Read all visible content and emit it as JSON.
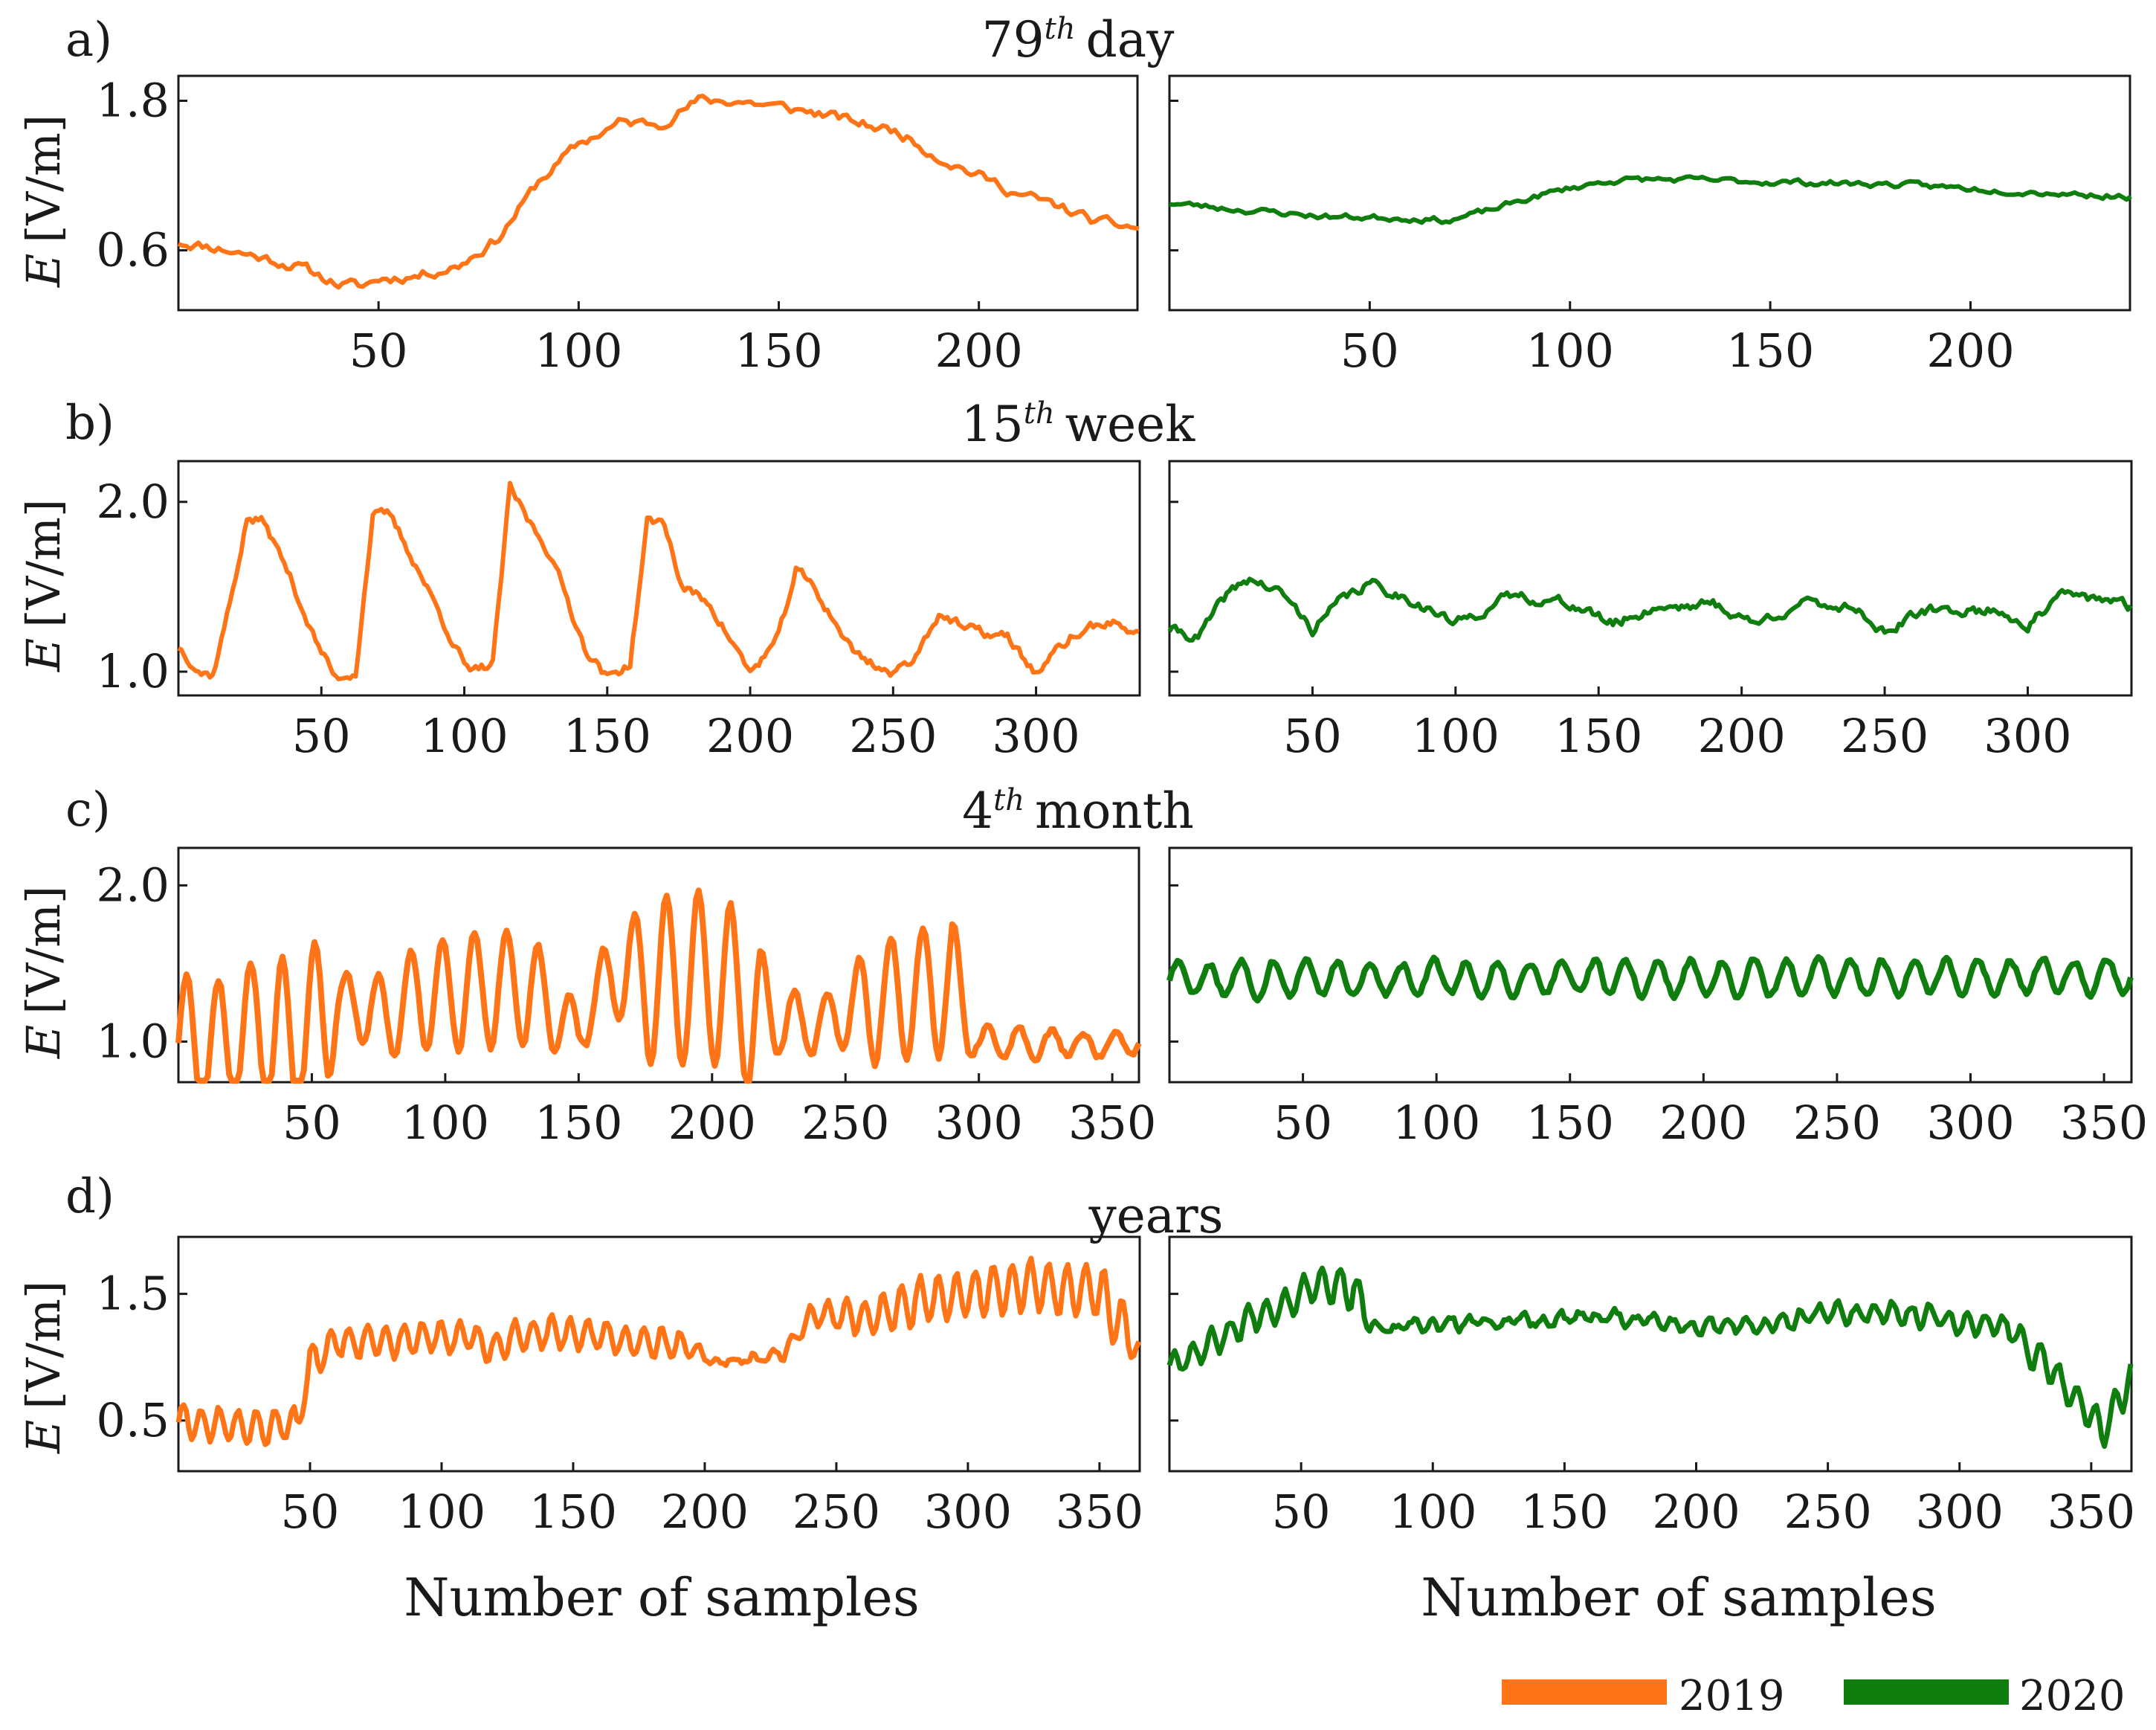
{
  "chart_data": [
    {
      "panel": "a)",
      "title_prefix": "79",
      "title_sup": "th",
      "title_suffix": "day",
      "type": "line",
      "ylabel_italic": "E",
      "ylabel_rest": "[V/m]",
      "yticks": [
        0.6,
        1.8
      ],
      "ytick_labels": [
        "0.6",
        "1.8"
      ],
      "ylim": [
        0.12,
        2.0
      ],
      "xticks": [
        50,
        100,
        150,
        200
      ],
      "xlim": [
        0,
        240
      ],
      "left": {
        "name": "2019",
        "n": 240,
        "knots": [
          [
            0,
            0.67
          ],
          [
            10,
            0.62
          ],
          [
            20,
            0.55
          ],
          [
            30,
            0.47
          ],
          [
            40,
            0.33
          ],
          [
            46,
            0.31
          ],
          [
            50,
            0.37
          ],
          [
            60,
            0.4
          ],
          [
            70,
            0.48
          ],
          [
            80,
            0.7
          ],
          [
            90,
            1.15
          ],
          [
            100,
            1.45
          ],
          [
            110,
            1.62
          ],
          [
            120,
            1.62
          ],
          [
            130,
            1.8
          ],
          [
            140,
            1.8
          ],
          [
            150,
            1.75
          ],
          [
            160,
            1.7
          ],
          [
            170,
            1.62
          ],
          [
            180,
            1.55
          ],
          [
            190,
            1.35
          ],
          [
            200,
            1.2
          ],
          [
            210,
            1.05
          ],
          [
            220,
            0.95
          ],
          [
            230,
            0.82
          ],
          [
            240,
            0.78
          ]
        ],
        "noise": 0.035,
        "seed": 11
      },
      "right": {
        "name": "2020",
        "n": 240,
        "knots": [
          [
            0,
            0.98
          ],
          [
            20,
            0.92
          ],
          [
            40,
            0.87
          ],
          [
            60,
            0.86
          ],
          [
            70,
            0.84
          ],
          [
            80,
            0.92
          ],
          [
            90,
            1.02
          ],
          [
            100,
            1.1
          ],
          [
            110,
            1.16
          ],
          [
            120,
            1.17
          ],
          [
            150,
            1.15
          ],
          [
            180,
            1.13
          ],
          [
            210,
            1.08
          ],
          [
            240,
            1.03
          ]
        ],
        "noise": 0.02,
        "seed": 23
      }
    },
    {
      "panel": "b)",
      "title_prefix": "15",
      "title_sup": "th",
      "title_suffix": "week",
      "type": "line",
      "ylabel_italic": "E",
      "ylabel_rest": "[V/m]",
      "yticks": [
        1.0,
        2.0
      ],
      "ytick_labels": [
        "1.0",
        "2.0"
      ],
      "ylim": [
        0.86,
        2.24
      ],
      "xticks": [
        50,
        100,
        150,
        200,
        250,
        300
      ],
      "xlim": [
        0,
        336
      ],
      "left": {
        "name": "2019",
        "n": 336,
        "knots": [
          [
            0,
            1.15
          ],
          [
            8,
            1.0
          ],
          [
            12,
            0.98
          ],
          [
            18,
            1.4
          ],
          [
            24,
            1.9
          ],
          [
            30,
            1.88
          ],
          [
            38,
            1.6
          ],
          [
            48,
            1.18
          ],
          [
            55,
            0.96
          ],
          [
            62,
            1.0
          ],
          [
            68,
            1.92
          ],
          [
            74,
            1.92
          ],
          [
            84,
            1.6
          ],
          [
            94,
            1.25
          ],
          [
            102,
            0.98
          ],
          [
            110,
            1.05
          ],
          [
            116,
            2.08
          ],
          [
            122,
            1.9
          ],
          [
            130,
            1.7
          ],
          [
            142,
            1.15
          ],
          [
            150,
            0.96
          ],
          [
            158,
            1.05
          ],
          [
            164,
            1.88
          ],
          [
            170,
            1.88
          ],
          [
            176,
            1.5
          ],
          [
            186,
            1.4
          ],
          [
            200,
            0.99
          ],
          [
            210,
            1.2
          ],
          [
            216,
            1.6
          ],
          [
            222,
            1.5
          ],
          [
            236,
            1.12
          ],
          [
            250,
            0.98
          ],
          [
            258,
            1.1
          ],
          [
            266,
            1.35
          ],
          [
            275,
            1.25
          ],
          [
            290,
            1.2
          ],
          [
            300,
            0.99
          ],
          [
            312,
            1.2
          ],
          [
            325,
            1.3
          ],
          [
            336,
            1.22
          ]
        ],
        "noise": 0.025,
        "seed": 37
      },
      "right": {
        "name": "2020",
        "n": 336,
        "knots": [
          [
            0,
            1.25
          ],
          [
            10,
            1.2
          ],
          [
            20,
            1.45
          ],
          [
            28,
            1.55
          ],
          [
            40,
            1.45
          ],
          [
            50,
            1.25
          ],
          [
            60,
            1.42
          ],
          [
            70,
            1.52
          ],
          [
            85,
            1.42
          ],
          [
            100,
            1.28
          ],
          [
            120,
            1.45
          ],
          [
            140,
            1.4
          ],
          [
            155,
            1.28
          ],
          [
            170,
            1.38
          ],
          [
            190,
            1.4
          ],
          [
            205,
            1.28
          ],
          [
            220,
            1.4
          ],
          [
            240,
            1.38
          ],
          [
            250,
            1.23
          ],
          [
            265,
            1.36
          ],
          [
            290,
            1.36
          ],
          [
            300,
            1.27
          ],
          [
            312,
            1.45
          ],
          [
            325,
            1.43
          ],
          [
            336,
            1.38
          ]
        ],
        "noise": 0.025,
        "seed": 41
      }
    },
    {
      "panel": "c)",
      "title_prefix": "4",
      "title_sup": "th",
      "title_suffix": "month",
      "type": "line",
      "ylabel_italic": "E",
      "ylabel_rest": "[V/m]",
      "yticks": [
        1.0,
        2.0
      ],
      "ytick_labels": [
        "1.0",
        "2.0"
      ],
      "ylim": [
        0.74,
        2.24
      ],
      "xticks": [
        50,
        100,
        150,
        200,
        250,
        300,
        350
      ],
      "xlim": [
        0,
        360
      ],
      "left": {
        "name": "2019",
        "n": 360,
        "knots": [
          [
            0,
            1.0
          ],
          [
            20,
            1.0
          ],
          [
            30,
            1.1
          ],
          [
            40,
            1.0
          ],
          [
            60,
            1.25
          ],
          [
            80,
            1.15
          ],
          [
            90,
            1.3
          ],
          [
            130,
            1.35
          ],
          [
            150,
            1.05
          ],
          [
            160,
            1.4
          ],
          [
            200,
            1.4
          ],
          [
            220,
            1.15
          ],
          [
            240,
            1.1
          ],
          [
            260,
            1.25
          ],
          [
            290,
            1.35
          ],
          [
            296,
            1.15
          ],
          [
            300,
            1.0
          ],
          [
            360,
            0.98
          ]
        ],
        "wave": {
          "period": 12,
          "amp_knots": [
            [
              0,
              0.45
            ],
            [
              20,
              0.4
            ],
            [
              30,
              0.45
            ],
            [
              40,
              0.55
            ],
            [
              56,
              0.48
            ],
            [
              60,
              0.2
            ],
            [
              80,
              0.25
            ],
            [
              90,
              0.35
            ],
            [
              130,
              0.4
            ],
            [
              150,
              0.15
            ],
            [
              165,
              0.25
            ],
            [
              175,
              0.55
            ],
            [
              215,
              0.55
            ],
            [
              225,
              0.2
            ],
            [
              250,
              0.2
            ],
            [
              260,
              0.4
            ],
            [
              290,
              0.45
            ],
            [
              300,
              0.1
            ],
            [
              360,
              0.06
            ]
          ]
        },
        "noise": 0.02,
        "seed": 53
      },
      "right": {
        "name": "2020",
        "n": 360,
        "knots": [
          [
            0,
            1.4
          ],
          [
            360,
            1.42
          ]
        ],
        "wave": {
          "period": 12,
          "amp_knots": [
            [
              0,
              0.11
            ],
            [
              360,
              0.11
            ]
          ]
        },
        "noise": 0.02,
        "seed": 59
      }
    },
    {
      "panel": "d)",
      "title_prefix": "",
      "title_sup": "",
      "title_suffix": "years",
      "type": "line",
      "ylabel_italic": "E",
      "ylabel_rest": "[V/m]",
      "yticks": [
        0.5,
        1.5
      ],
      "ytick_labels": [
        "0.5",
        "1.5"
      ],
      "ylim": [
        0.1,
        1.95
      ],
      "xticks": [
        50,
        100,
        150,
        200,
        250,
        300,
        350
      ],
      "xlim": [
        0,
        365
      ],
      "left": {
        "name": "2019",
        "n": 365,
        "knots": [
          [
            0,
            0.5
          ],
          [
            20,
            0.45
          ],
          [
            45,
            0.45
          ],
          [
            50,
            0.95
          ],
          [
            60,
            1.1
          ],
          [
            90,
            1.15
          ],
          [
            110,
            1.15
          ],
          [
            120,
            1.05
          ],
          [
            130,
            1.2
          ],
          [
            160,
            1.15
          ],
          [
            190,
            1.1
          ],
          [
            200,
            0.97
          ],
          [
            230,
            1.0
          ],
          [
            240,
            1.35
          ],
          [
            260,
            1.3
          ],
          [
            280,
            1.45
          ],
          [
            320,
            1.55
          ],
          [
            350,
            1.5
          ],
          [
            360,
            1.2
          ],
          [
            365,
            1.05
          ]
        ],
        "wave": {
          "period": 7,
          "amp_knots": [
            [
              0,
              0.12
            ],
            [
              45,
              0.12
            ],
            [
              50,
              0.12
            ],
            [
              190,
              0.12
            ],
            [
              200,
              0.03
            ],
            [
              235,
              0.03
            ],
            [
              240,
              0.08
            ],
            [
              270,
              0.18
            ],
            [
              360,
              0.22
            ],
            [
              365,
              0.1
            ]
          ]
        },
        "noise": 0.03,
        "seed": 61
      },
      "right": {
        "name": "2020",
        "n": 365,
        "knots": [
          [
            0,
            0.95
          ],
          [
            15,
            1.1
          ],
          [
            30,
            1.3
          ],
          [
            45,
            1.45
          ],
          [
            55,
            1.6
          ],
          [
            70,
            1.55
          ],
          [
            75,
            1.3
          ],
          [
            80,
            1.2
          ],
          [
            100,
            1.25
          ],
          [
            140,
            1.3
          ],
          [
            180,
            1.3
          ],
          [
            200,
            1.25
          ],
          [
            230,
            1.25
          ],
          [
            250,
            1.35
          ],
          [
            290,
            1.33
          ],
          [
            310,
            1.25
          ],
          [
            320,
            1.2
          ],
          [
            335,
            0.9
          ],
          [
            350,
            0.55
          ],
          [
            355,
            0.45
          ],
          [
            365,
            0.85
          ]
        ],
        "wave": {
          "period": 7,
          "amp_knots": [
            [
              0,
              0.08
            ],
            [
              40,
              0.12
            ],
            [
              70,
              0.15
            ],
            [
              80,
              0.04
            ],
            [
              230,
              0.05
            ],
            [
              250,
              0.07
            ],
            [
              310,
              0.08
            ],
            [
              340,
              0.12
            ],
            [
              365,
              0.15
            ]
          ]
        },
        "noise": 0.03,
        "seed": 67
      }
    }
  ],
  "xlabel": "Number of samples",
  "legend": [
    {
      "label": "2019",
      "color": "#ff7416"
    },
    {
      "label": "2020",
      "color": "#0f7e0f"
    }
  ]
}
